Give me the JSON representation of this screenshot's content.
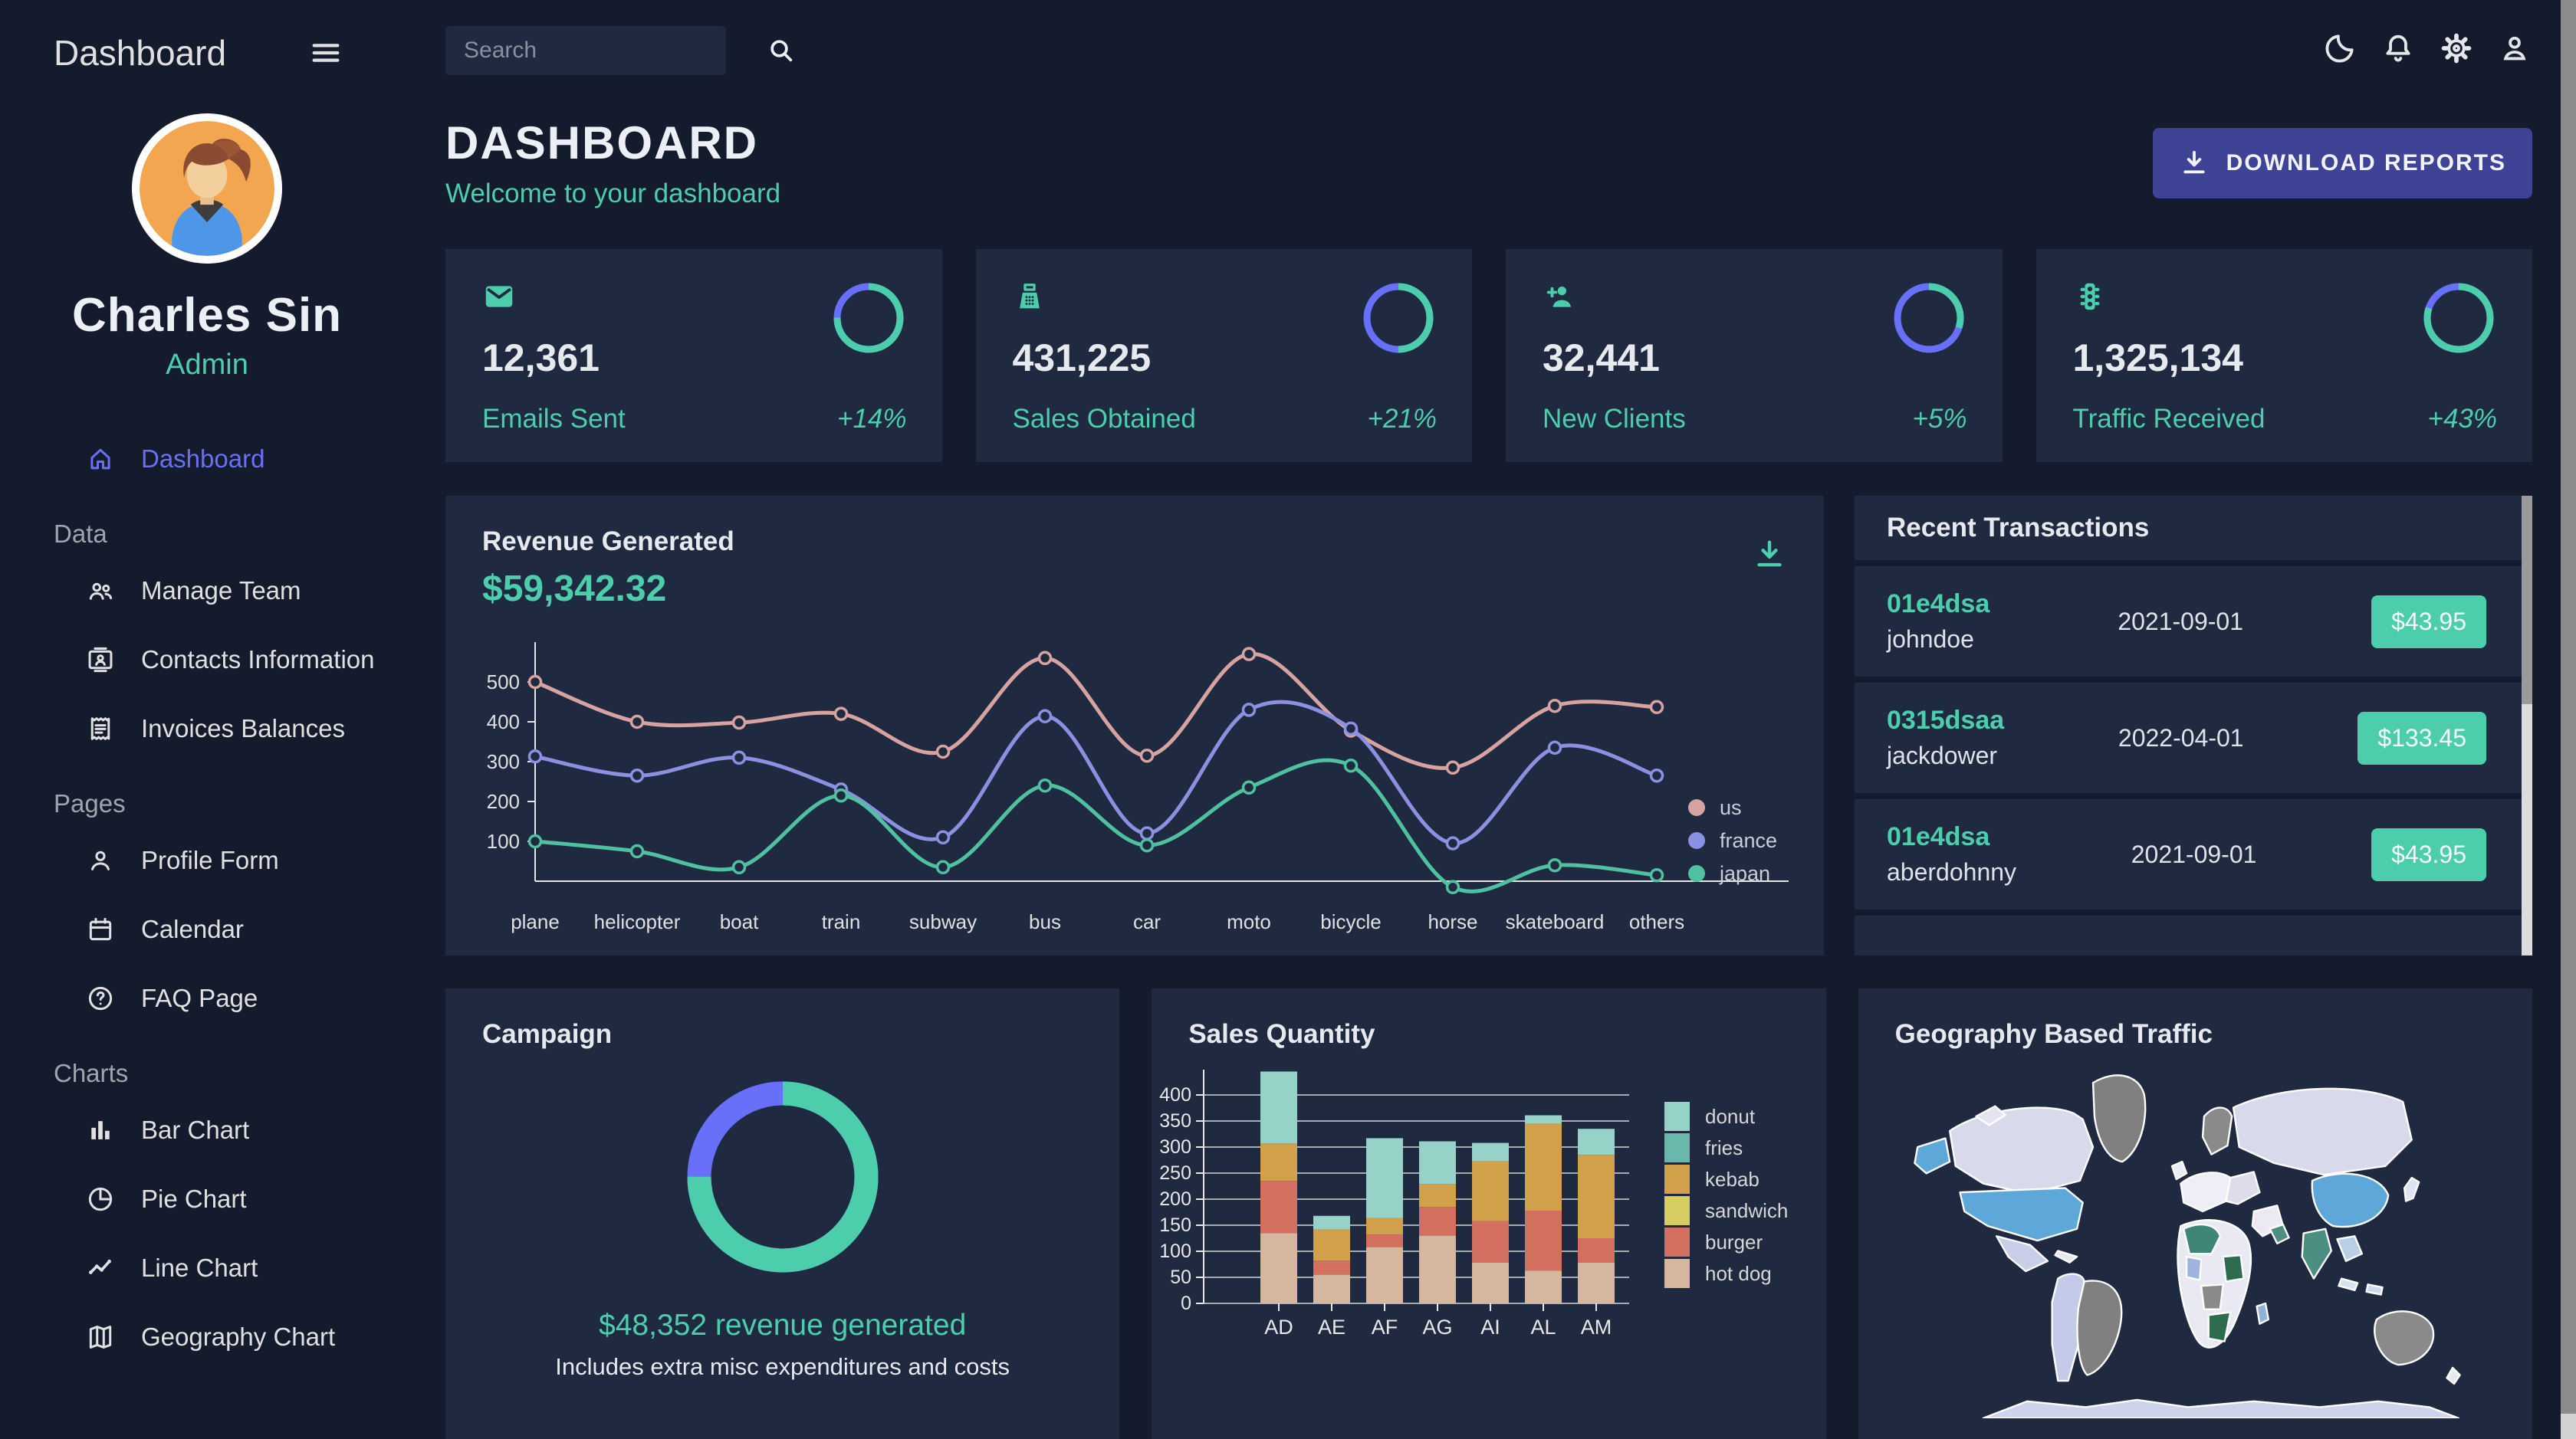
{
  "colors": {
    "page_bg": "#141b2d",
    "card_bg": "#1f2a40",
    "accent_green": "#4cceac",
    "accent_blue": "#6870fa",
    "button_blue": "#3e4396",
    "text_light": "#e0e0e0",
    "heading_gray": "#a1a4ab"
  },
  "sidebar": {
    "app_title": "Dashboard",
    "user_name": "Charles Sin",
    "user_role": "Admin",
    "sections": [
      {
        "heading": "",
        "items": [
          {
            "label": "Dashboard",
            "icon": "home-icon",
            "active": true
          }
        ]
      },
      {
        "heading": "Data",
        "items": [
          {
            "label": "Manage Team",
            "icon": "people-icon"
          },
          {
            "label": "Contacts Information",
            "icon": "contacts-icon"
          },
          {
            "label": "Invoices Balances",
            "icon": "receipt-icon"
          }
        ]
      },
      {
        "heading": "Pages",
        "items": [
          {
            "label": "Profile Form",
            "icon": "person-icon"
          },
          {
            "label": "Calendar",
            "icon": "calendar-icon"
          },
          {
            "label": "FAQ Page",
            "icon": "help-icon"
          }
        ]
      },
      {
        "heading": "Charts",
        "items": [
          {
            "label": "Bar Chart",
            "icon": "bar-chart-icon"
          },
          {
            "label": "Pie Chart",
            "icon": "pie-chart-icon"
          },
          {
            "label": "Line Chart",
            "icon": "line-chart-icon"
          },
          {
            "label": "Geography Chart",
            "icon": "map-icon"
          }
        ]
      }
    ]
  },
  "topbar": {
    "search_placeholder": "Search"
  },
  "header": {
    "title": "DASHBOARD",
    "subtitle": "Welcome to your dashboard",
    "download_label": "DOWNLOAD REPORTS"
  },
  "stat_cards": [
    {
      "icon": "email-icon",
      "value": "12,361",
      "label": "Emails Sent",
      "delta": "+14%",
      "progress": 0.75
    },
    {
      "icon": "point-of-sale-icon",
      "value": "431,225",
      "label": "Sales Obtained",
      "delta": "+21%",
      "progress": 0.5
    },
    {
      "icon": "person-add-icon",
      "value": "32,441",
      "label": "New Clients",
      "delta": "+5%",
      "progress": 0.3
    },
    {
      "icon": "traffic-icon",
      "value": "1,325,134",
      "label": "Traffic Received",
      "delta": "+43%",
      "progress": 0.8
    }
  ],
  "revenue": {
    "title": "Revenue Generated",
    "amount": "$59,342.32"
  },
  "transactions": {
    "title": "Recent Transactions",
    "rows": [
      {
        "id": "01e4dsa",
        "user": "johndoe",
        "date": "2021-09-01",
        "amount": "$43.95"
      },
      {
        "id": "0315dsaa",
        "user": "jackdower",
        "date": "2022-04-01",
        "amount": "$133.45"
      },
      {
        "id": "01e4dsa",
        "user": "aberdohnny",
        "date": "2021-09-01",
        "amount": "$43.95"
      }
    ]
  },
  "campaign": {
    "title": "Campaign",
    "progress": 0.75,
    "caption": "$48,352 revenue generated",
    "subcaption": "Includes extra misc expenditures and costs"
  },
  "sales": {
    "title": "Sales Quantity"
  },
  "geography": {
    "title": "Geography Based Traffic"
  },
  "chart_data": [
    {
      "type": "line",
      "title": "Revenue Generated",
      "x": [
        "plane",
        "helicopter",
        "boat",
        "train",
        "subway",
        "bus",
        "car",
        "moto",
        "bicycle",
        "horse",
        "skateboard",
        "others"
      ],
      "ylim": [
        -20,
        580
      ],
      "yticks": [
        100,
        200,
        300,
        400,
        500
      ],
      "grid": false,
      "legend_position": "right",
      "series": [
        {
          "name": "us",
          "color": "#d6a3a0",
          "values": [
            500,
            400,
            398,
            420,
            325,
            560,
            315,
            570,
            378,
            285,
            440,
            437
          ]
        },
        {
          "name": "france",
          "color": "#8a91e0",
          "values": [
            313,
            265,
            310,
            230,
            110,
            414,
            120,
            430,
            383,
            95,
            335,
            265
          ]
        },
        {
          "name": "japan",
          "color": "#4fc0a0",
          "values": [
            100,
            75,
            35,
            215,
            35,
            240,
            90,
            235,
            290,
            -15,
            40,
            15
          ]
        }
      ]
    },
    {
      "type": "bar",
      "title": "Sales Quantity",
      "stacked": true,
      "categories": [
        "AD",
        "AE",
        "AF",
        "AG",
        "AI",
        "AL",
        "AM"
      ],
      "ylim": [
        0,
        450
      ],
      "yticks": [
        0,
        50,
        100,
        150,
        200,
        250,
        300,
        350,
        400
      ],
      "grid": true,
      "legend_position": "right",
      "series": [
        {
          "name": "hot dog",
          "color": "#d4b79e",
          "values": [
            135,
            55,
            108,
            130,
            78,
            63,
            78
          ]
        },
        {
          "name": "burger",
          "color": "#d3705f",
          "values": [
            100,
            27,
            24,
            55,
            80,
            115,
            47
          ]
        },
        {
          "name": "sandwich",
          "color": "#d6cd62",
          "values": [
            0,
            0,
            0,
            0,
            0,
            0,
            0
          ]
        },
        {
          "name": "kebab",
          "color": "#d1a04a",
          "values": [
            72,
            60,
            32,
            44,
            115,
            167,
            160
          ]
        },
        {
          "name": "fries",
          "color": "#6ab8ab",
          "values": [
            0,
            0,
            0,
            0,
            0,
            0,
            0
          ]
        },
        {
          "name": "donut",
          "color": "#97d2c8",
          "values": [
            138,
            26,
            153,
            82,
            35,
            16,
            50
          ]
        }
      ],
      "legend_order": [
        "donut",
        "fries",
        "kebab",
        "sandwich",
        "burger",
        "hot dog"
      ]
    }
  ]
}
